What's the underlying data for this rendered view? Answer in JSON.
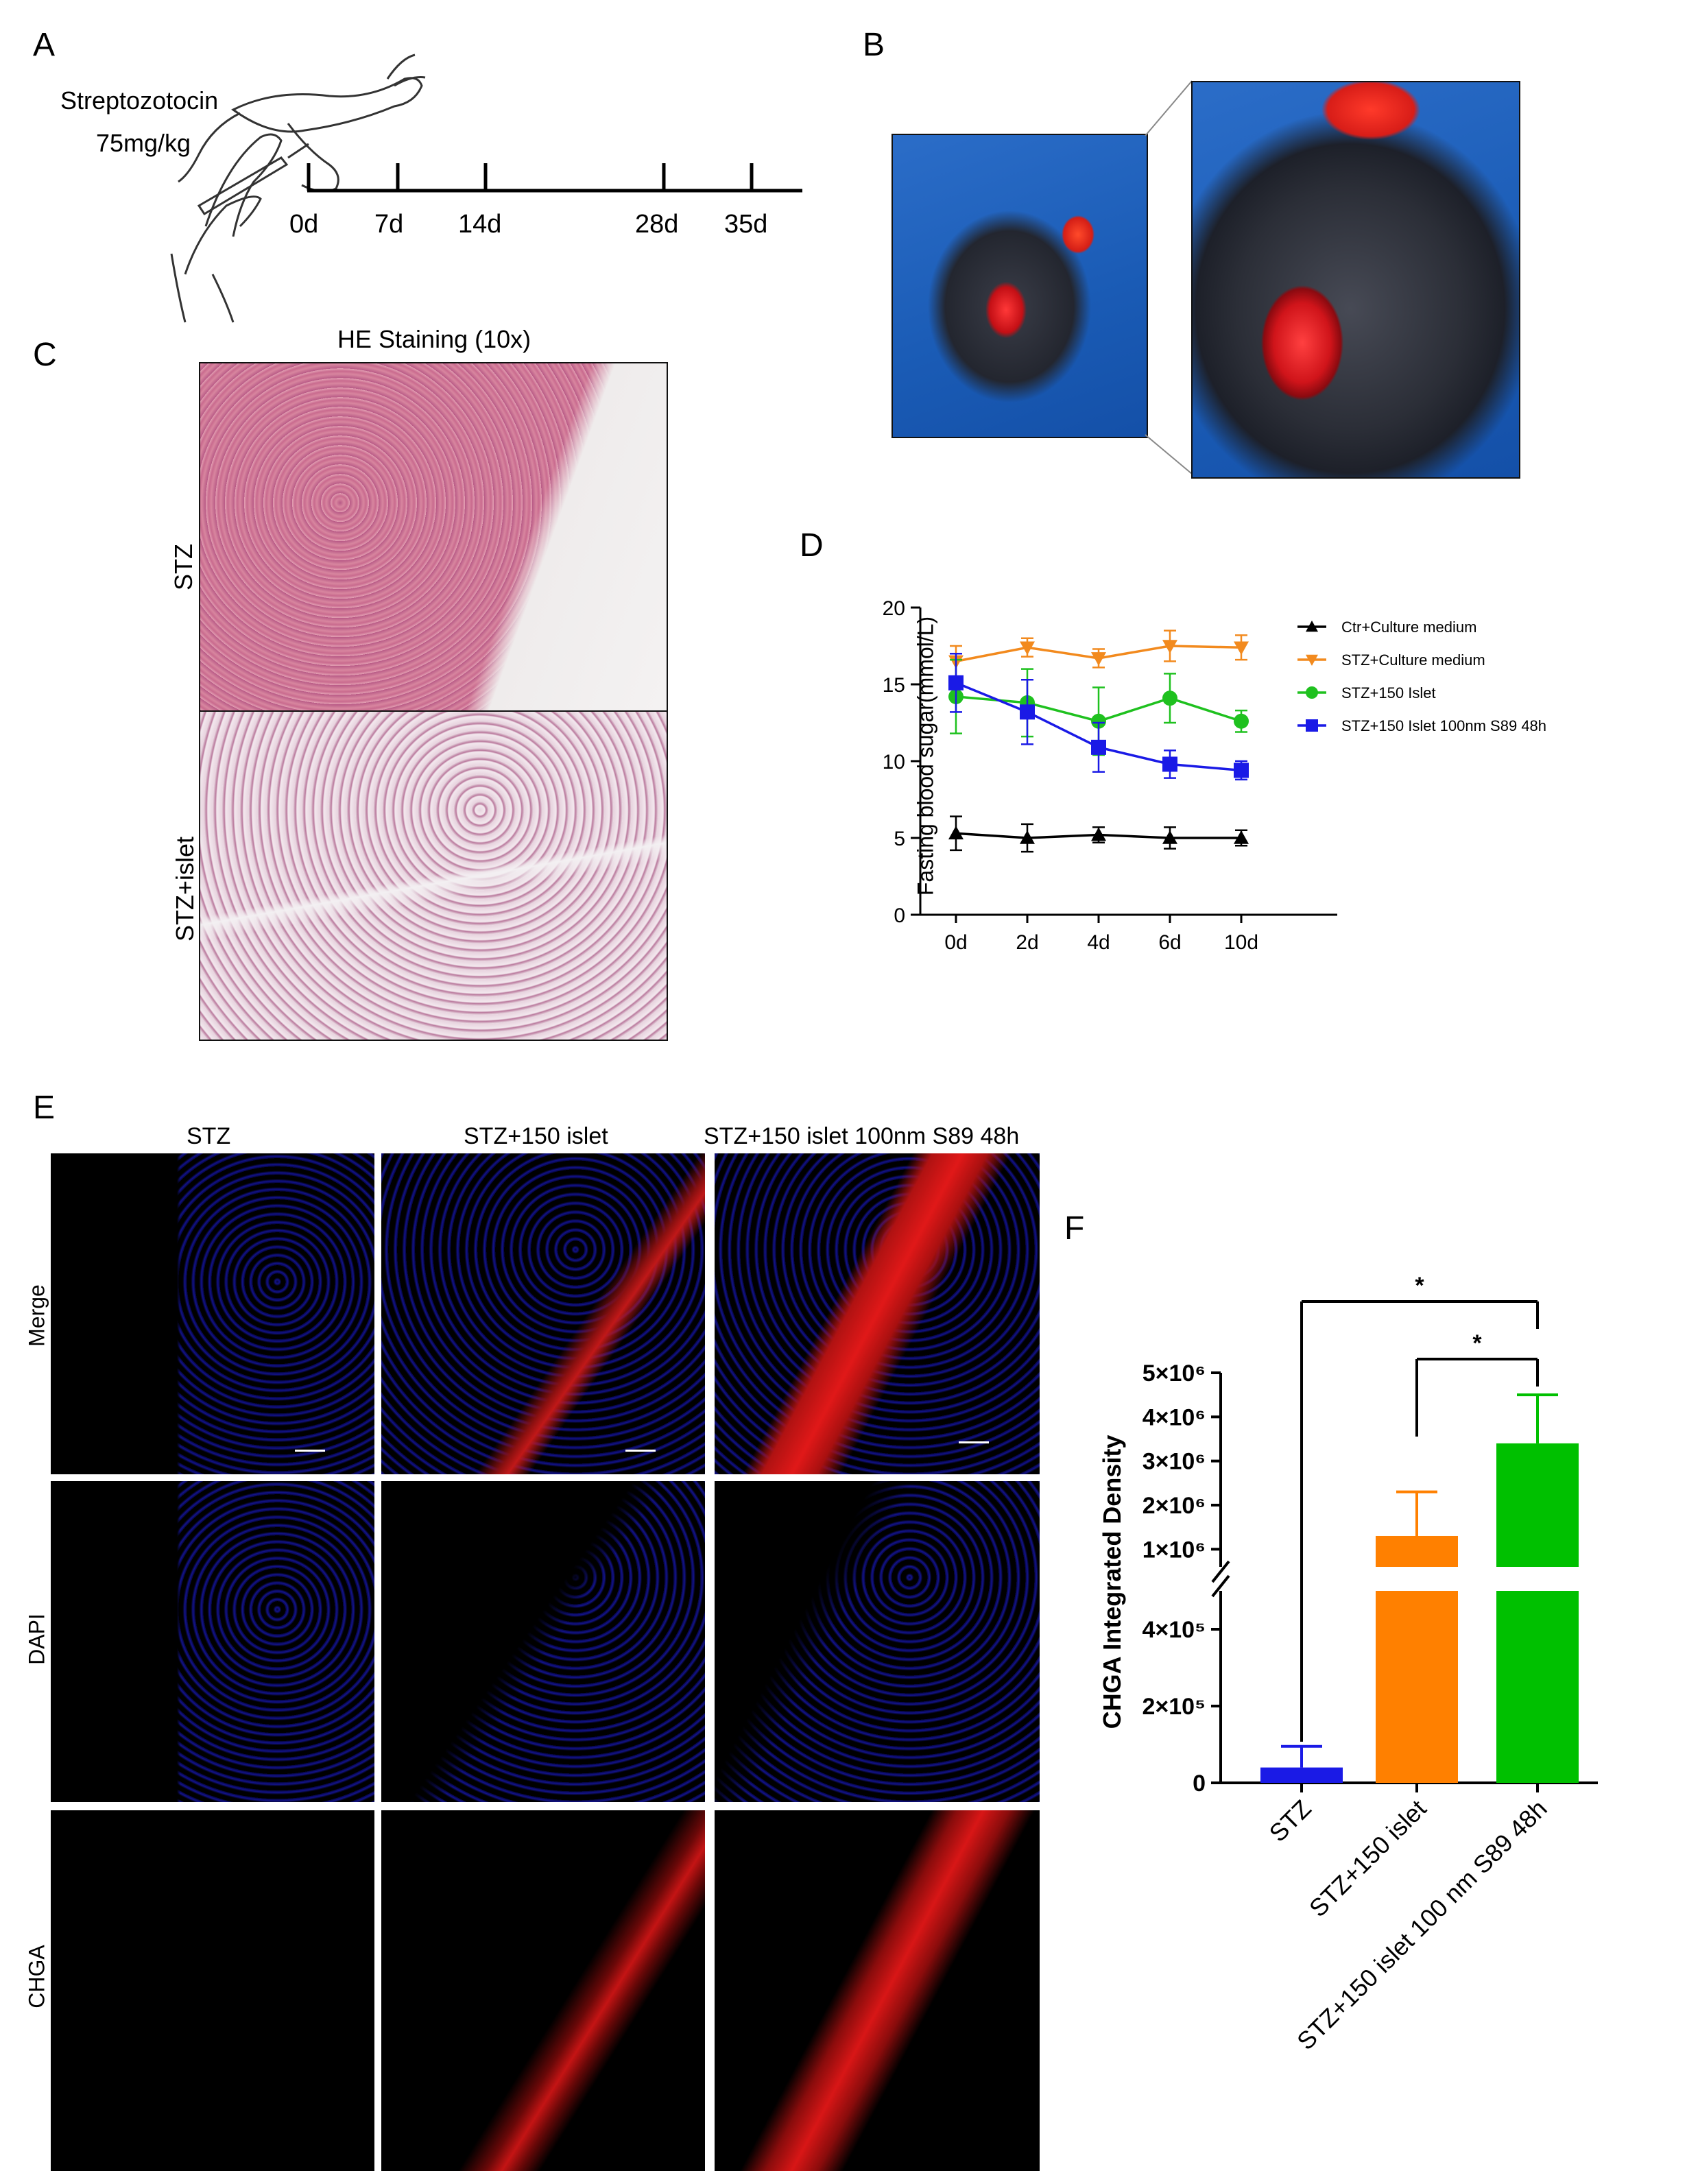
{
  "panels": {
    "a": {
      "letter": "A",
      "drug": "Streptozotocin",
      "dose": "75mg/kg",
      "timeline": [
        "0d",
        "7d",
        "14d",
        "28d",
        "35d"
      ],
      "mouse_icon": "mouse-injection-drawing"
    },
    "b": {
      "letter": "B",
      "photo_icon": "mouse-transplant-photo"
    },
    "c": {
      "letter": "C",
      "title": "HE Staining (10x)",
      "rows": [
        "STZ",
        "STZ+islet"
      ],
      "image_icon": "he-stained-kidney-section"
    },
    "d": {
      "letter": "D"
    },
    "e": {
      "letter": "E",
      "columns": [
        "STZ",
        "STZ+150 islet",
        "STZ+150 islet 100nm S89 48h"
      ],
      "rows": [
        "Merge",
        "DAPI",
        "CHGA"
      ],
      "image_icon": "immunofluorescence-micrograph",
      "colors": {
        "dapi": "#1a1ad8",
        "chga": "#d41010"
      }
    },
    "f": {
      "letter": "F"
    }
  },
  "chart_data": [
    {
      "id": "D",
      "type": "line",
      "title": "",
      "xlabel": "",
      "ylabel": "Fasting blood sugar(mmol/L)",
      "x": [
        "0d",
        "2d",
        "4d",
        "6d",
        "10d"
      ],
      "ylim": [
        0,
        20
      ],
      "yticks": [
        "0",
        "5",
        "10",
        "15",
        "20"
      ],
      "legend_position": "right",
      "grid": false,
      "series": [
        {
          "name": "Ctr+Culture medium",
          "color": "#000000",
          "marker": "triangle-up",
          "values": [
            5.3,
            5.0,
            5.2,
            5.0,
            5.0
          ],
          "errors": [
            1.1,
            0.9,
            0.5,
            0.7,
            0.5
          ]
        },
        {
          "name": "STZ+Culture medium",
          "color": "#f28a1e",
          "marker": "triangle-down",
          "values": [
            16.5,
            17.4,
            16.7,
            17.5,
            17.4
          ],
          "errors": [
            1.0,
            0.6,
            0.6,
            1.0,
            0.8
          ]
        },
        {
          "name": "STZ+150 Islet",
          "color": "#1fc11f",
          "marker": "circle",
          "values": [
            14.2,
            13.8,
            12.6,
            14.1,
            12.6
          ],
          "errors": [
            2.4,
            2.2,
            2.2,
            1.6,
            0.7
          ]
        },
        {
          "name": "STZ+150 Islet 100nm S89 48h",
          "color": "#1a1ae6",
          "marker": "square",
          "values": [
            15.1,
            13.2,
            10.9,
            9.8,
            9.4
          ],
          "errors": [
            1.9,
            2.1,
            1.6,
            0.9,
            0.6
          ]
        }
      ]
    },
    {
      "id": "F",
      "type": "bar",
      "title": "",
      "xlabel": "",
      "ylabel": "CHGA Integrated Density",
      "categories": [
        "STZ",
        "STZ+150 islet",
        "STZ+150 islet 100 nm S89 48h"
      ],
      "values": [
        40000,
        1300000,
        3400000
      ],
      "errors": [
        55000,
        1000000,
        1100000
      ],
      "colors": [
        "#1a1ae6",
        "#ff8000",
        "#00c000"
      ],
      "axis_break": true,
      "ylim_lower": [
        0,
        500000
      ],
      "ylim_upper": [
        600000,
        5000000
      ],
      "yticks_lower": [
        {
          "value": 0,
          "label": "0"
        },
        {
          "value": 200000,
          "label": "2×10⁵"
        },
        {
          "value": 400000,
          "label": "4×10⁵"
        }
      ],
      "yticks_upper": [
        {
          "value": 1000000,
          "label": "1×10⁶"
        },
        {
          "value": 2000000,
          "label": "2×10⁶"
        },
        {
          "value": 3000000,
          "label": "3×10⁶"
        },
        {
          "value": 4000000,
          "label": "4×10⁶"
        },
        {
          "value": 5000000,
          "label": "5×10⁶"
        }
      ],
      "significance": [
        {
          "from": 0,
          "to": 2,
          "label": "*"
        },
        {
          "from": 1,
          "to": 2,
          "label": "*"
        }
      ]
    }
  ]
}
